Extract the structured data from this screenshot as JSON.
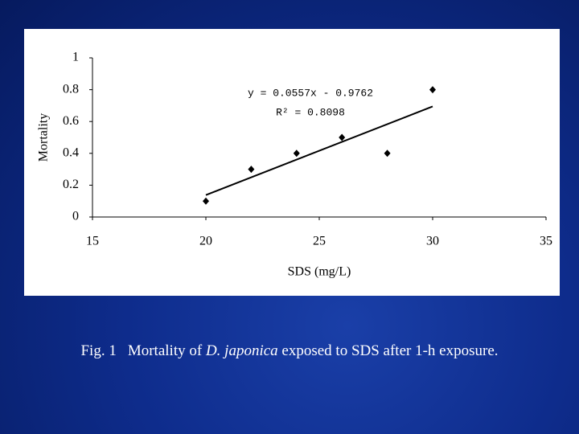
{
  "chart_data": {
    "type": "scatter",
    "x_label": "SDS (mg/L)",
    "y_label": "Mortality",
    "x": [
      20,
      22,
      24,
      26,
      28,
      30
    ],
    "values": [
      0.1,
      0.3,
      0.4,
      0.5,
      0.4,
      0.8
    ],
    "color": "#000000",
    "trendline": {
      "x": [
        20,
        30
      ],
      "values": [
        0.1378,
        0.6948
      ]
    },
    "annotations": [
      "y = 0.0557x - 0.9762",
      "R² = 0.8098"
    ],
    "xlim": [
      15,
      35
    ],
    "xticks": [
      15,
      20,
      25,
      30,
      35
    ],
    "ylim": [
      0,
      1
    ],
    "yticks": [
      0,
      0.2,
      0.4,
      0.6,
      0.8,
      1
    ],
    "grid": false
  },
  "caption": {
    "label": "Fig. 1",
    "parts": [
      "Mortality of ",
      "D. japonica",
      " exposed to SDS after 1-h exposure."
    ]
  }
}
